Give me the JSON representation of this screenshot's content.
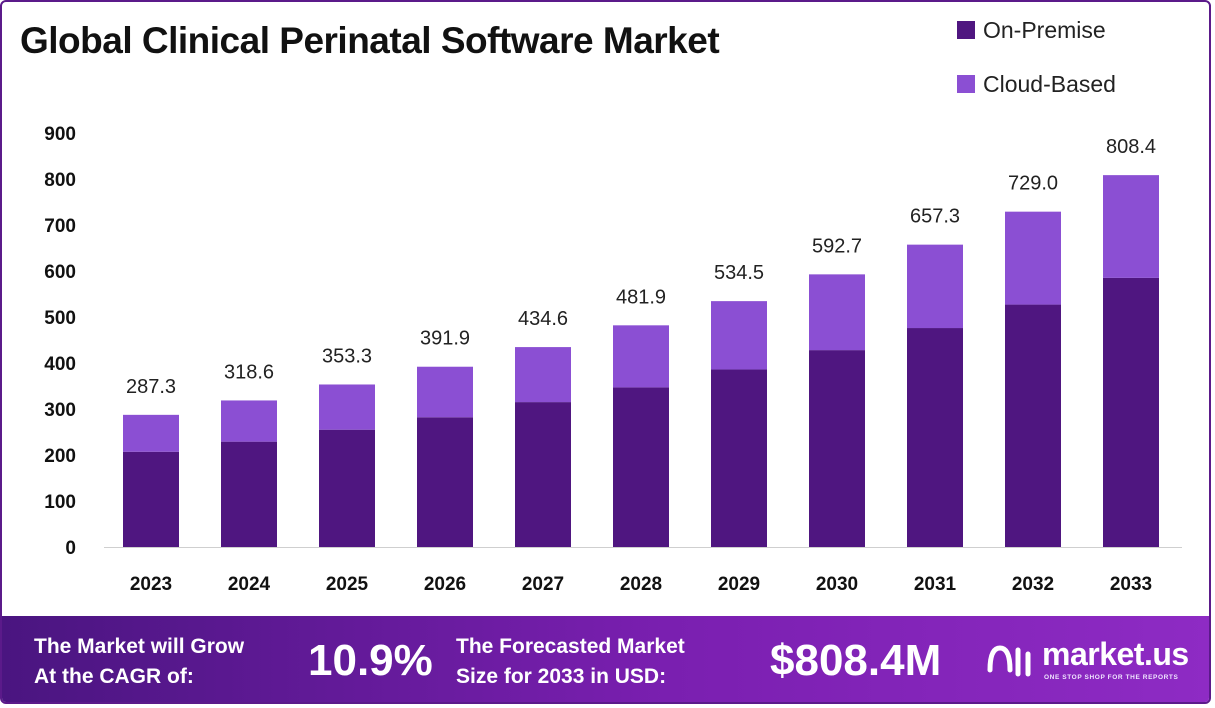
{
  "title": "Global Clinical Perinatal Software Market",
  "legend": [
    {
      "label": "On-Premise",
      "color": "#4f1680"
    },
    {
      "label": "Cloud-Based",
      "color": "#8b4fd3"
    }
  ],
  "chart_data": {
    "type": "bar",
    "stacked": true,
    "categories": [
      "2023",
      "2024",
      "2025",
      "2026",
      "2027",
      "2028",
      "2029",
      "2030",
      "2031",
      "2032",
      "2033"
    ],
    "series": [
      {
        "name": "On-Premise",
        "color": "#4f1680",
        "values": [
          207,
          229,
          255,
          282,
          315,
          347,
          386,
          428,
          476,
          527,
          585
        ]
      },
      {
        "name": "Cloud-Based",
        "color": "#8b4fd3",
        "values": [
          80.3,
          89.6,
          98.3,
          109.9,
          119.6,
          134.9,
          148.5,
          164.7,
          181.3,
          202.0,
          223.4
        ]
      }
    ],
    "totals": [
      "287.3",
      "318.6",
      "353.3",
      "391.9",
      "434.6",
      "481.9",
      "534.5",
      "592.7",
      "657.3",
      "729.0",
      "808.4"
    ],
    "yticks": [
      "0",
      "100",
      "200",
      "300",
      "400",
      "500",
      "600",
      "700",
      "800",
      "900"
    ],
    "ylim": [
      0,
      900
    ],
    "grid": false
  },
  "footer": {
    "cagr_label_line1": "The Market will Grow",
    "cagr_label_line2": "At the CAGR of:",
    "cagr_value": "10.9%",
    "forecast_label_line1": "The Forecasted Market",
    "forecast_label_line2": "Size for 2033 in USD:",
    "forecast_value": "$808.4M",
    "brand": "market.us",
    "tagline": "ONE STOP SHOP FOR THE REPORTS"
  }
}
